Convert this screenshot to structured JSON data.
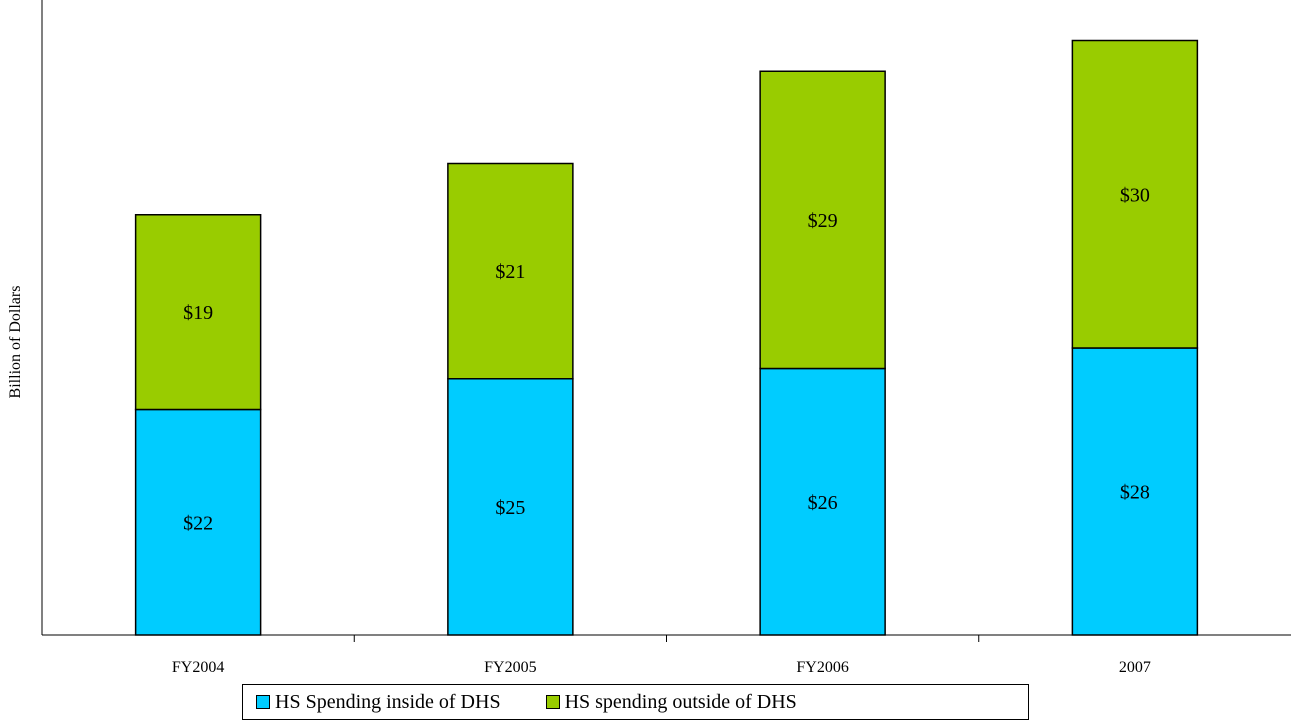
{
  "chart_data": {
    "type": "bar",
    "stacked": true,
    "categories": [
      "FY2004",
      "FY2005",
      "FY2006",
      "2007"
    ],
    "series": [
      {
        "name": "HS Spending inside of DHS",
        "values": [
          22,
          25,
          26,
          28
        ],
        "color": "#00CCFF",
        "labels": [
          "$22",
          "$25",
          "$26",
          "$28"
        ]
      },
      {
        "name": "HS spending outside of DHS",
        "values": [
          19,
          21,
          29,
          30
        ],
        "color": "#99CC00",
        "labels": [
          "$19",
          "$21",
          "$29",
          "$30"
        ]
      }
    ],
    "ylabel": "Billion of Dollars",
    "xlabel": "",
    "ylim": [
      0,
      60
    ],
    "grid": false,
    "legend_position": "bottom"
  }
}
